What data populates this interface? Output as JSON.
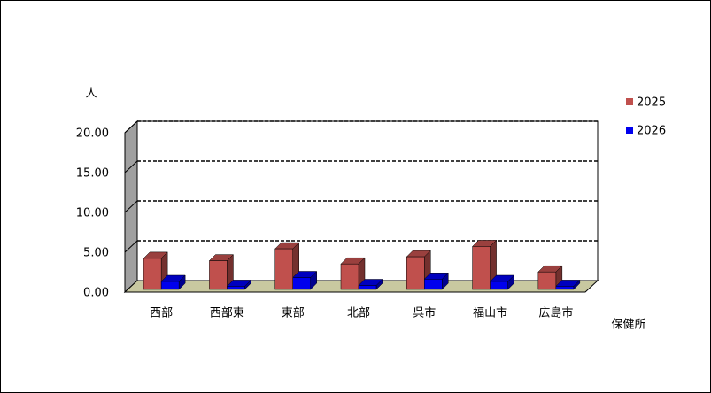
{
  "chart_data": {
    "type": "bar3d",
    "y_label": "人",
    "x_label": "保健所",
    "categories": [
      "西部",
      "西部東",
      "東部",
      "北部",
      "呉市",
      "福山市",
      "広島市"
    ],
    "series": [
      {
        "name": "2025",
        "color": "#c0504d",
        "values": [
          3.9,
          3.6,
          5.1,
          3.2,
          4.1,
          5.4,
          2.2
        ]
      },
      {
        "name": "2026",
        "color": "#0000ee",
        "values": [
          1.0,
          0.4,
          1.5,
          0.5,
          1.3,
          1.0,
          0.4
        ]
      }
    ],
    "ylim": [
      0,
      20
    ],
    "yticks": [
      {
        "value": 0,
        "label": "0.00"
      },
      {
        "value": 5,
        "label": "5.00"
      },
      {
        "value": 10,
        "label": "10.00"
      },
      {
        "value": 15,
        "label": "15.00"
      },
      {
        "value": 20,
        "label": "20.00"
      }
    ],
    "grid": true,
    "legend": "right"
  }
}
